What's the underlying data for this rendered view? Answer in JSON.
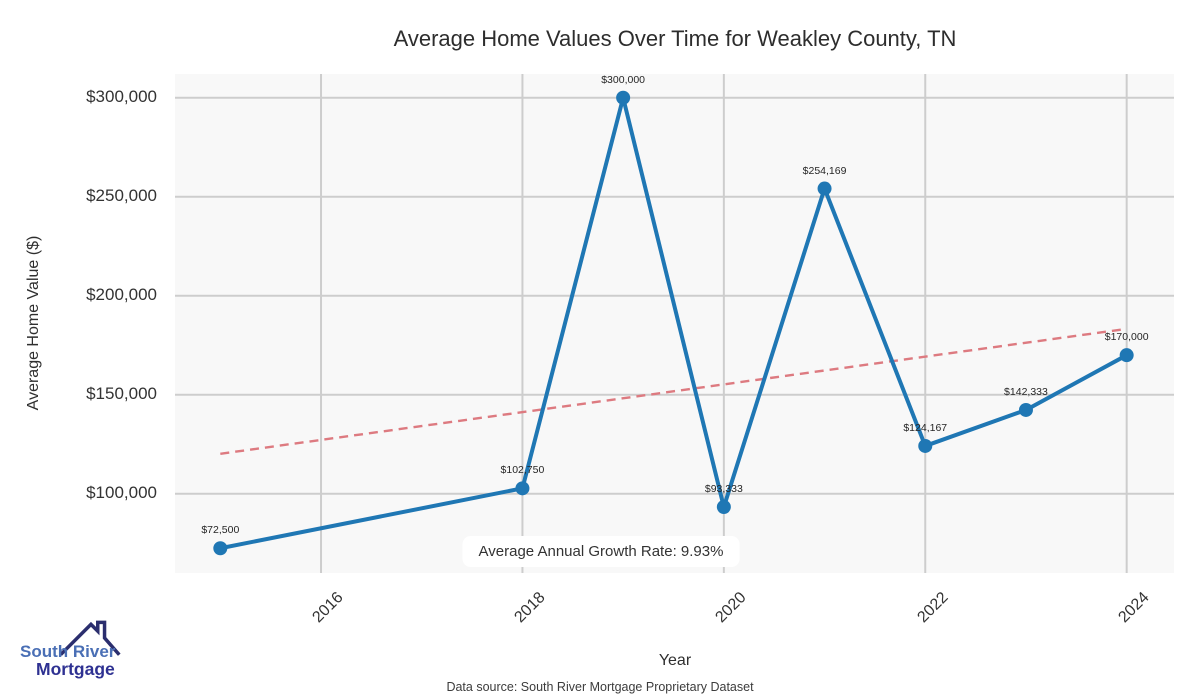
{
  "title": "Average Home Values Over Time for Weakley County, TN",
  "footer": {
    "data_source": "Data source: South River Mortgage Proprietary Dataset"
  },
  "logo": {
    "line1": "South River",
    "line2": "Mortgage",
    "colors": {
      "roof": "#2b2e6e",
      "line1": "#4a6fb5",
      "line2": "#2e3192"
    }
  },
  "chart_data": {
    "type": "line",
    "title": "Average Home Values Over Time for Weakley County, TN",
    "xlabel": "Year",
    "ylabel": "Average Home Value ($)",
    "x": [
      2015,
      2018,
      2019,
      2020,
      2021,
      2022,
      2023,
      2024
    ],
    "values": [
      72500,
      102750,
      300000,
      93333,
      254169,
      124167,
      142333,
      170000
    ],
    "point_labels": [
      "$72,500",
      "$102,750",
      "$300,000",
      "$93,333",
      "$254,169",
      "$124,167",
      "$142,333",
      "$170,000"
    ],
    "x_ticks": [
      2016,
      2018,
      2020,
      2022,
      2024
    ],
    "y_ticks": [
      {
        "value": 100000,
        "label": "$100,000"
      },
      {
        "value": 150000,
        "label": "$150,000"
      },
      {
        "value": 200000,
        "label": "$200,000"
      },
      {
        "value": 250000,
        "label": "$250,000"
      },
      {
        "value": 300000,
        "label": "$300,000"
      }
    ],
    "xlim": [
      2014.55,
      2024.47
    ],
    "ylim": [
      60000,
      312000
    ],
    "grid": true,
    "legend": "none",
    "annotation": "Average Annual Growth Rate: 9.93%",
    "trend_line": {
      "x": [
        2015,
        2024
      ],
      "values": [
        120200,
        183300
      ],
      "style": "dashed"
    },
    "colors": {
      "series": "#1f77b4",
      "trend": "#dd7a80",
      "plot_bg": "#f8f8f8",
      "grid": "#cdcdcd"
    }
  }
}
